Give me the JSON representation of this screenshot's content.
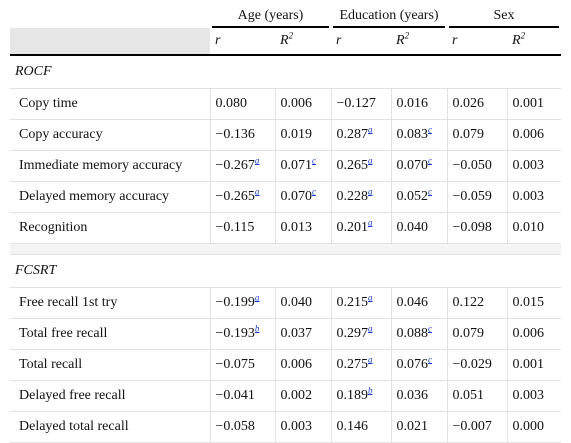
{
  "header": {
    "groups": [
      {
        "label": "Age (years)"
      },
      {
        "label": "Education (years)"
      },
      {
        "label": "Sex"
      }
    ],
    "sub": [
      {
        "stat": "r",
        "sup": ""
      },
      {
        "stat": "R",
        "sup": "2"
      },
      {
        "stat": "r",
        "sup": ""
      },
      {
        "stat": "R",
        "sup": "2"
      },
      {
        "stat": "r",
        "sup": ""
      },
      {
        "stat": "R",
        "sup": "2"
      }
    ]
  },
  "sections": [
    {
      "title": "ROCF",
      "rows": [
        {
          "label": "Copy time",
          "cells": [
            {
              "v": "0.080",
              "s": ""
            },
            {
              "v": "0.006",
              "s": ""
            },
            {
              "v": "−0.127",
              "s": ""
            },
            {
              "v": "0.016",
              "s": ""
            },
            {
              "v": "0.026",
              "s": ""
            },
            {
              "v": "0.001",
              "s": ""
            }
          ]
        },
        {
          "label": "Copy accuracy",
          "cells": [
            {
              "v": "−0.136",
              "s": ""
            },
            {
              "v": "0.019",
              "s": ""
            },
            {
              "v": "0.287",
              "s": "a"
            },
            {
              "v": "0.083",
              "s": "c"
            },
            {
              "v": "0.079",
              "s": ""
            },
            {
              "v": "0.006",
              "s": ""
            }
          ]
        },
        {
          "label": "Immediate memory accuracy",
          "cells": [
            {
              "v": "−0.267",
              "s": "a"
            },
            {
              "v": "0.071",
              "s": "c"
            },
            {
              "v": "0.265",
              "s": "a"
            },
            {
              "v": "0.070",
              "s": "c"
            },
            {
              "v": "−0.050",
              "s": ""
            },
            {
              "v": "0.003",
              "s": ""
            }
          ]
        },
        {
          "label": "Delayed memory accuracy",
          "cells": [
            {
              "v": "−0.265",
              "s": "a"
            },
            {
              "v": "0.070",
              "s": "c"
            },
            {
              "v": "0.228",
              "s": "a"
            },
            {
              "v": "0.052",
              "s": "c"
            },
            {
              "v": "−0.059",
              "s": ""
            },
            {
              "v": "0.003",
              "s": ""
            }
          ]
        },
        {
          "label": "Recognition",
          "cells": [
            {
              "v": "−0.115",
              "s": ""
            },
            {
              "v": "0.013",
              "s": ""
            },
            {
              "v": "0.201",
              "s": "a"
            },
            {
              "v": "0.040",
              "s": ""
            },
            {
              "v": "−0.098",
              "s": ""
            },
            {
              "v": "0.010",
              "s": ""
            }
          ]
        }
      ]
    },
    {
      "title": "FCSRT",
      "rows": [
        {
          "label": "Free recall 1st try",
          "cells": [
            {
              "v": "−0.199",
              "s": "a"
            },
            {
              "v": "0.040",
              "s": ""
            },
            {
              "v": "0.215",
              "s": "a"
            },
            {
              "v": "0.046",
              "s": ""
            },
            {
              "v": "0.122",
              "s": ""
            },
            {
              "v": "0.015",
              "s": ""
            }
          ]
        },
        {
          "label": "Total free recall",
          "cells": [
            {
              "v": "−0.193",
              "s": "b"
            },
            {
              "v": "0.037",
              "s": ""
            },
            {
              "v": "0.297",
              "s": "a"
            },
            {
              "v": "0.088",
              "s": "c"
            },
            {
              "v": "0.079",
              "s": ""
            },
            {
              "v": "0.006",
              "s": ""
            }
          ]
        },
        {
          "label": "Total recall",
          "cells": [
            {
              "v": "−0.075",
              "s": ""
            },
            {
              "v": "0.006",
              "s": ""
            },
            {
              "v": "0.275",
              "s": "a"
            },
            {
              "v": "0.076",
              "s": "c"
            },
            {
              "v": "−0.029",
              "s": ""
            },
            {
              "v": "0.001",
              "s": ""
            }
          ]
        },
        {
          "label": "Delayed free recall",
          "cells": [
            {
              "v": "−0.041",
              "s": ""
            },
            {
              "v": "0.002",
              "s": ""
            },
            {
              "v": "0.189",
              "s": "b"
            },
            {
              "v": "0.036",
              "s": ""
            },
            {
              "v": "0.051",
              "s": ""
            },
            {
              "v": "0.003",
              "s": ""
            }
          ]
        },
        {
          "label": "Delayed total recall",
          "cells": [
            {
              "v": "−0.058",
              "s": ""
            },
            {
              "v": "0.003",
              "s": ""
            },
            {
              "v": "0.146",
              "s": ""
            },
            {
              "v": "0.021",
              "s": ""
            },
            {
              "v": "−0.007",
              "s": ""
            },
            {
              "v": "0.000",
              "s": ""
            }
          ]
        }
      ]
    }
  ],
  "colors": {
    "link": "#1a3ccc",
    "rule": "#000000",
    "gridline": "#e2e2e2",
    "header_blank_bg": "#e6e6e6"
  }
}
